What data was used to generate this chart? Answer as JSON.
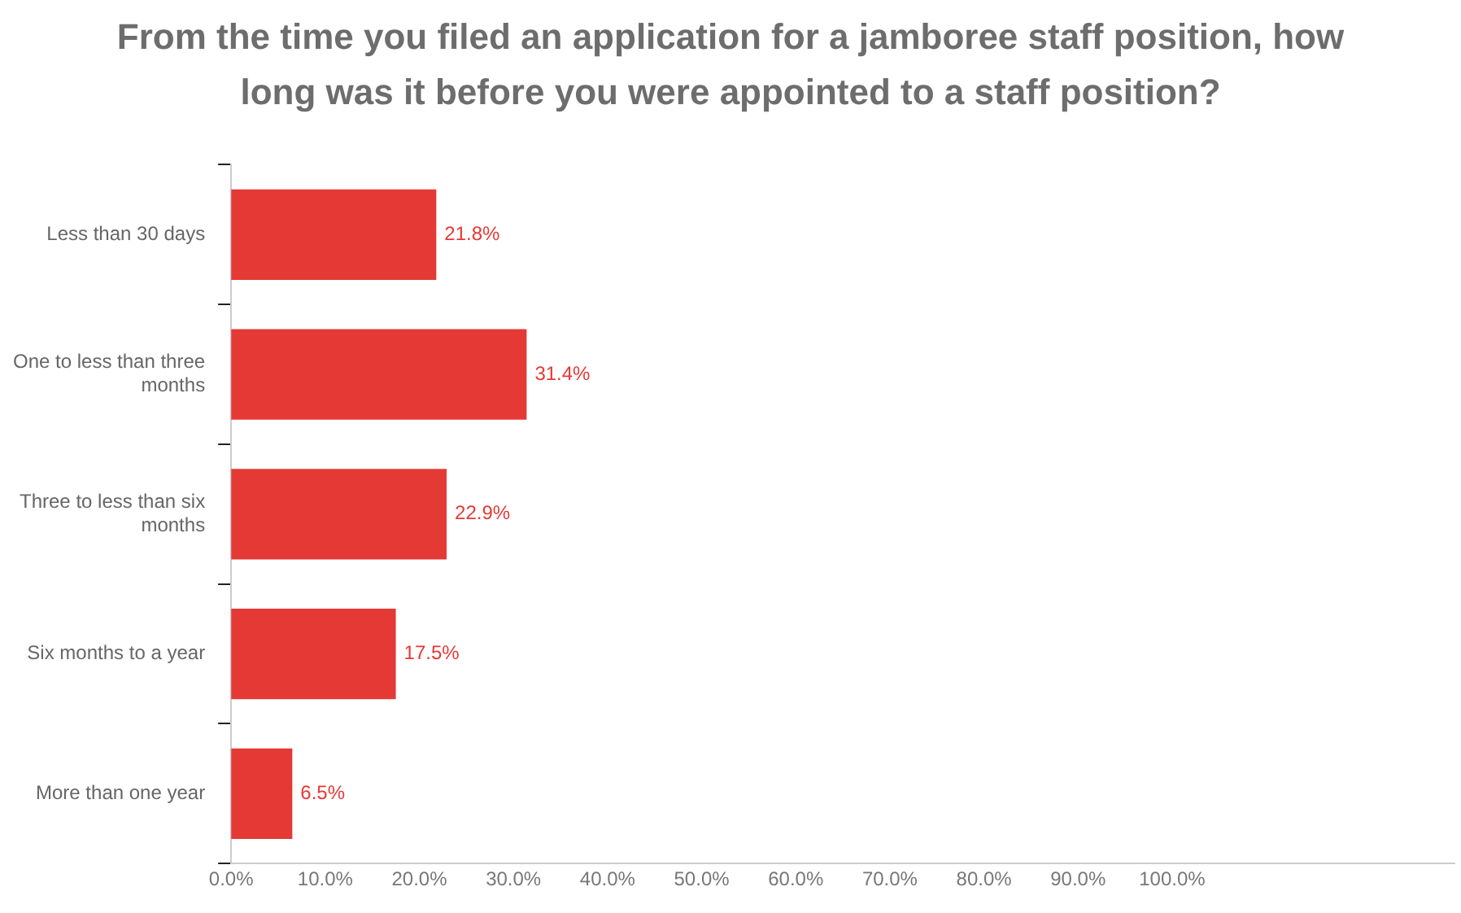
{
  "chart_data": {
    "type": "bar",
    "orientation": "horizontal",
    "title": "From the time you filed an application for a jamboree staff position, how long was it before you were appointed to a staff position?",
    "categories": [
      "Less than 30 days",
      "One to less than three months",
      "Three to less than six months",
      "Six months to a year",
      "More than one year"
    ],
    "values": [
      21.8,
      31.4,
      22.9,
      17.5,
      6.5
    ],
    "color": "#e53935",
    "value_labels": [
      "21.8%",
      "31.4%",
      "22.9%",
      "17.5%",
      "6.5%"
    ],
    "xlim": [
      0,
      130
    ],
    "xticks": [
      {
        "value": 0,
        "label": "0.0%"
      },
      {
        "value": 10,
        "label": "10.0%"
      },
      {
        "value": 20,
        "label": "20.0%"
      },
      {
        "value": 30,
        "label": "30.0%"
      },
      {
        "value": 40,
        "label": "40.0%"
      },
      {
        "value": 50,
        "label": "50.0%"
      },
      {
        "value": 60,
        "label": "60.0%"
      },
      {
        "value": 70,
        "label": "70.0%"
      },
      {
        "value": 80,
        "label": "80.0%"
      },
      {
        "value": 90,
        "label": "90.0%"
      },
      {
        "value": 100,
        "label": "100.0%"
      }
    ],
    "grid": false,
    "legend": false
  }
}
